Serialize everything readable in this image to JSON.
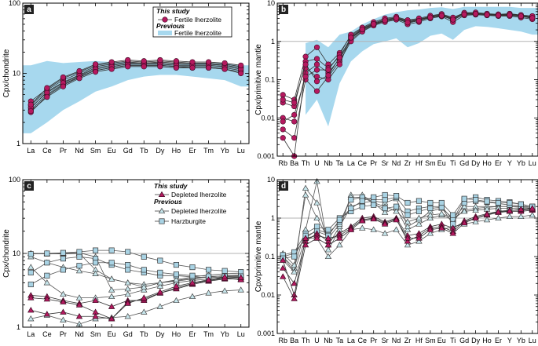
{
  "colors": {
    "this_study": "#b5195f",
    "previous_fill": "#a7d8ee",
    "previous_stroke": "#555555",
    "depleted_prev_fill": "#c7e6ec",
    "harzburgite_fill": "#a9d3e4",
    "ref_line": "#b3b3b3"
  },
  "chart_data": [
    {
      "id": "a",
      "type": "line",
      "panel_label": "a",
      "ylabel": "Cpx/chondrite",
      "yscale": "log",
      "ylim": [
        1,
        100
      ],
      "yticks": [
        1,
        10,
        100
      ],
      "ytick_labels": [
        "1",
        "10",
        "100"
      ],
      "categories": [
        "La",
        "Ce",
        "Pr",
        "Nd",
        "Sm",
        "Eu",
        "Gd",
        "Tb",
        "Dy",
        "Ho",
        "Er",
        "Tm",
        "Yb",
        "Lu"
      ],
      "legend": {
        "title1": "This study",
        "item1": "Fertile lherzolite",
        "title2": "Previous",
        "item2": "Fertile lherzolite"
      },
      "band_previous": {
        "upper": [
          13,
          15,
          14,
          14.5,
          15,
          14.5,
          14.5,
          14,
          14,
          14,
          14,
          14,
          14,
          13
        ],
        "lower": [
          1.4,
          2,
          3,
          4,
          5.5,
          6.5,
          8,
          9,
          9.5,
          9.5,
          9,
          8.5,
          8,
          6.5
        ]
      },
      "series_this_study": [
        [
          3.0,
          5.0,
          7.0,
          9.0,
          11.0,
          12.0,
          13.0,
          13.0,
          13.0,
          12.5,
          12.5,
          12.5,
          12.0,
          11.0
        ],
        [
          3.2,
          5.5,
          7.5,
          9.5,
          12.0,
          13.0,
          14.0,
          14.0,
          14.0,
          13.5,
          13.5,
          13.5,
          13.0,
          12.0
        ],
        [
          4.0,
          6.0,
          8.5,
          10.5,
          13.0,
          14.0,
          15.0,
          14.5,
          15.0,
          14.5,
          14.0,
          14.0,
          13.5,
          12.5
        ],
        [
          3.5,
          5.8,
          8.0,
          10.0,
          12.5,
          13.5,
          14.5,
          14.0,
          14.5,
          14.0,
          13.5,
          13.5,
          13.0,
          12.0
        ],
        [
          2.8,
          4.8,
          6.8,
          8.8,
          11.0,
          12.0,
          13.0,
          13.0,
          13.0,
          12.5,
          12.0,
          12.0,
          11.5,
          10.5
        ],
        [
          3.3,
          5.3,
          7.3,
          9.3,
          11.5,
          12.5,
          13.5,
          13.5,
          13.5,
          13.0,
          13.0,
          13.0,
          12.5,
          11.5
        ],
        [
          2.9,
          4.6,
          6.5,
          8.5,
          10.5,
          11.5,
          12.5,
          12.5,
          12.5,
          12.0,
          12.0,
          12.0,
          11.5,
          10.0
        ],
        [
          3.6,
          6.2,
          8.8,
          10.8,
          13.5,
          14.5,
          15.5,
          15.0,
          15.5,
          15.0,
          14.5,
          14.5,
          14.0,
          13.0
        ]
      ]
    },
    {
      "id": "b",
      "type": "line",
      "panel_label": "b",
      "ylabel": "Cpx/primitive mantle",
      "yscale": "log",
      "ylim": [
        0.001,
        10
      ],
      "yticks": [
        0.001,
        0.01,
        0.1,
        1,
        10
      ],
      "ytick_labels": [
        "0.001",
        "0.01",
        "0.1",
        "1",
        "10"
      ],
      "categories": [
        "Rb",
        "Ba",
        "Th",
        "U",
        "Nb",
        "Ta",
        "La",
        "Ce",
        "Pr",
        "Sr",
        "Nd",
        "Zr",
        "Hf",
        "Sm",
        "Eu",
        "Ti",
        "Gd",
        "Dy",
        "Ho",
        "Er",
        "Y",
        "Yb",
        "Lu"
      ],
      "reference_line": 1,
      "band_previous": {
        "upper": [
          null,
          null,
          0.9,
          1.1,
          0.7,
          1.5,
          1.8,
          2.8,
          3.8,
          5.0,
          5.8,
          6.5,
          6.8,
          7.5,
          7.8,
          7.0,
          8.0,
          8.0,
          8.0,
          8.0,
          8.0,
          7.5,
          7.5
        ],
        "lower": [
          null,
          null,
          0.012,
          0.03,
          0.006,
          0.08,
          0.3,
          0.55,
          0.85,
          1.0,
          1.2,
          0.7,
          0.9,
          1.4,
          1.6,
          1.1,
          2.0,
          2.5,
          2.4,
          2.2,
          2.0,
          1.8,
          1.5
        ]
      },
      "series_this_study": [
        [
          0.04,
          0.03,
          0.4,
          0.7,
          0.25,
          0.5,
          1.4,
          2.2,
          3.0,
          3.8,
          4.2,
          3.5,
          3.8,
          4.5,
          5.0,
          4.0,
          5.5,
          5.5,
          5.2,
          5.0,
          5.2,
          4.8,
          4.5
        ],
        [
          0.025,
          0.02,
          0.3,
          0.35,
          0.2,
          0.4,
          1.2,
          2.0,
          2.8,
          3.5,
          4.0,
          3.0,
          3.5,
          4.2,
          4.8,
          3.6,
          5.2,
          5.3,
          5.0,
          4.8,
          5.0,
          4.6,
          4.2
        ],
        [
          0.01,
          0.008,
          0.15,
          0.25,
          0.15,
          0.35,
          1.1,
          1.9,
          2.7,
          3.4,
          3.8,
          3.2,
          3.6,
          4.3,
          4.6,
          3.8,
          5.0,
          5.2,
          5.0,
          4.8,
          4.8,
          4.5,
          4.0
        ],
        [
          0.005,
          0.003,
          0.1,
          0.05,
          0.12,
          0.3,
          1.0,
          1.8,
          2.6,
          3.2,
          3.7,
          2.8,
          3.2,
          4.0,
          4.5,
          3.2,
          4.8,
          5.0,
          4.8,
          4.6,
          4.6,
          4.2,
          3.8
        ],
        [
          0.003,
          0.001,
          0.2,
          0.12,
          0.1,
          0.25,
          1.3,
          2.1,
          2.9,
          3.6,
          4.1,
          3.3,
          3.7,
          4.4,
          4.9,
          3.9,
          5.4,
          5.4,
          5.1,
          4.9,
          5.1,
          4.7,
          4.3
        ],
        [
          0.008,
          0.012,
          0.12,
          0.18,
          0.18,
          0.45,
          1.5,
          2.3,
          3.2,
          4.0,
          4.4,
          3.6,
          4.0,
          4.7,
          5.2,
          4.2,
          5.6,
          5.7,
          5.3,
          5.1,
          5.3,
          4.9,
          4.6
        ],
        [
          0.03,
          0.025,
          0.25,
          0.09,
          0.13,
          0.38,
          1.25,
          2.05,
          2.85,
          3.55,
          4.05,
          3.1,
          3.45,
          4.25,
          4.7,
          3.7,
          5.1,
          5.25,
          4.95,
          4.75,
          4.9,
          4.55,
          4.1
        ]
      ]
    },
    {
      "id": "c",
      "type": "line",
      "panel_label": "c",
      "ylabel": "Cpx/chondrite",
      "yscale": "log",
      "ylim": [
        1,
        100
      ],
      "yticks": [
        1,
        10,
        100
      ],
      "ytick_labels": [
        "1",
        "10",
        "100"
      ],
      "categories": [
        "La",
        "Ce",
        "Pr",
        "Nd",
        "Sm",
        "Eu",
        "Gd",
        "Tb",
        "Dy",
        "Ho",
        "Er",
        "Tm",
        "Yb",
        "Lu"
      ],
      "reference_line": 10,
      "legend": {
        "title1": "This study",
        "item1": "Depleted lherzolite",
        "title2": "Previous",
        "item2": "Depleted lherzolite",
        "item3": "Harzburgite"
      },
      "series_this_study": [
        [
          2.7,
          2.6,
          2.3,
          2.1,
          2.3,
          1.9,
          2.3,
          2.3,
          2.9,
          3.3,
          3.8,
          4.2,
          4.5,
          4.5
        ],
        [
          2.5,
          2.4,
          2.2,
          2.0,
          1.6,
          1.3,
          2.2,
          2.4,
          2.9,
          3.4,
          3.9,
          4.3,
          4.6,
          4.4
        ],
        [
          1.7,
          1.5,
          1.6,
          1.4,
          1.4,
          1.3,
          2.1,
          2.5,
          3.0,
          3.6,
          4.0,
          4.4,
          4.8,
          4.7
        ]
      ],
      "series_depleted_previous": [
        [
          10.0,
          10.0,
          9.8,
          10.0,
          6.0,
          4.5,
          4.0,
          3.5,
          4.0,
          4.3,
          4.6,
          4.8,
          5.0,
          5.0
        ],
        [
          9.0,
          7.5,
          6.5,
          5.8,
          5.3,
          4.5,
          4.0,
          3.8,
          4.0,
          4.2,
          4.5,
          4.8,
          5.0,
          5.1
        ],
        [
          6.5,
          4.0,
          2.8,
          2.5,
          2.5,
          2.6,
          2.8,
          3.2,
          3.6,
          4.0,
          4.3,
          4.5,
          4.6,
          4.7
        ],
        [
          1.3,
          1.45,
          1.25,
          1.1,
          1.3,
          1.35,
          1.4,
          1.6,
          1.9,
          2.3,
          2.6,
          2.9,
          3.1,
          3.2
        ],
        [
          10.0,
          9.8,
          10.0,
          10.2,
          9.0,
          3.2,
          3.3,
          3.5,
          4.0,
          4.4,
          4.8,
          5.1,
          5.3,
          5.4
        ]
      ],
      "series_harzburgite": [
        [
          9.8,
          10.0,
          10.2,
          10.5,
          11.0,
          11.0,
          10.5,
          9.0,
          8.0,
          7.0,
          6.5,
          6.0,
          5.8,
          5.6
        ],
        [
          5.5,
          7.5,
          8.5,
          9.0,
          8.5,
          7.0,
          6.0,
          5.5,
          5.0,
          5.0,
          4.8,
          4.7,
          4.8,
          4.8
        ],
        [
          3.8,
          5.0,
          6.0,
          6.8,
          7.5,
          7.5,
          7.0,
          6.0,
          5.5,
          5.2,
          5.0,
          4.9,
          4.9,
          4.9
        ]
      ]
    },
    {
      "id": "d",
      "type": "line",
      "panel_label": "d",
      "ylabel": "Cpx/primitive mantle",
      "yscale": "log",
      "ylim": [
        0.001,
        10
      ],
      "yticks": [
        0.001,
        0.01,
        0.1,
        1,
        10
      ],
      "ytick_labels": [
        "0.001",
        "0.01",
        "0.1",
        "1",
        "10"
      ],
      "categories": [
        "Rb",
        "Ba",
        "Th",
        "U",
        "Nb",
        "Ta",
        "La",
        "Ce",
        "Pr",
        "Sr",
        "Nd",
        "Zr",
        "Hf",
        "Sm",
        "Eu",
        "Ti",
        "Gd",
        "Dy",
        "Ho",
        "Er",
        "Y",
        "Yb",
        "Lu"
      ],
      "reference_line": 1,
      "series_this_study": [
        [
          0.05,
          0.02,
          0.25,
          0.4,
          0.25,
          0.4,
          0.6,
          1.0,
          1.1,
          0.8,
          1.0,
          0.35,
          0.4,
          0.6,
          0.7,
          0.55,
          0.8,
          1.0,
          1.2,
          1.4,
          1.5,
          1.5,
          1.6
        ],
        [
          0.08,
          0.01,
          0.3,
          0.35,
          0.3,
          0.35,
          0.55,
          0.9,
          1.0,
          0.75,
          0.95,
          0.25,
          0.35,
          0.55,
          0.6,
          0.45,
          0.85,
          1.1,
          1.3,
          1.5,
          1.6,
          1.6,
          1.7
        ],
        [
          0.03,
          0.008,
          0.2,
          0.3,
          0.2,
          0.3,
          0.5,
          0.85,
          0.95,
          0.7,
          0.9,
          0.3,
          0.3,
          0.5,
          0.55,
          0.4,
          0.75,
          1.0,
          1.25,
          1.45,
          1.55,
          1.7,
          1.8
        ]
      ],
      "series_depleted_previous": [
        [
          0.1,
          0.05,
          0.5,
          9.0,
          0.15,
          0.5,
          4.0,
          4.0,
          2.5,
          1.4,
          1.8,
          0.5,
          0.7,
          1.0,
          1.2,
          0.9,
          1.6,
          1.8,
          1.9,
          2.0,
          2.0,
          1.9,
          1.8
        ],
        [
          0.08,
          0.04,
          6.0,
          2.5,
          0.2,
          0.6,
          2.0,
          2.5,
          2.8,
          2.5,
          3.2,
          0.6,
          0.9,
          1.5,
          1.8,
          1.0,
          2.0,
          2.0,
          2.0,
          2.0,
          2.0,
          2.0,
          1.9
        ],
        [
          0.12,
          0.06,
          4.0,
          1.0,
          0.3,
          0.7,
          3.5,
          3.5,
          2.5,
          2.0,
          1.5,
          0.8,
          1.0,
          1.2,
          1.3,
          1.0,
          1.5,
          1.6,
          1.7,
          1.8,
          1.8,
          1.8,
          1.7
        ],
        [
          0.1,
          0.04,
          0.3,
          0.3,
          0.1,
          0.2,
          0.5,
          0.55,
          0.5,
          0.4,
          0.5,
          0.2,
          0.25,
          0.4,
          0.5,
          0.6,
          0.7,
          0.8,
          0.9,
          1.0,
          1.1,
          1.1,
          1.2
        ]
      ],
      "series_harzburgite": [
        [
          0.1,
          0.12,
          0.3,
          0.5,
          0.4,
          0.8,
          3.0,
          3.5,
          3.0,
          3.0,
          3.5,
          1.5,
          1.8,
          2.0,
          2.0,
          0.9,
          3.0,
          3.5,
          3.0,
          2.8,
          2.6,
          2.3,
          2.0
        ],
        [
          0.11,
          0.13,
          0.4,
          0.6,
          0.5,
          1.0,
          1.5,
          2.0,
          2.2,
          1.8,
          2.0,
          1.2,
          1.5,
          1.8,
          1.9,
          0.7,
          2.5,
          2.8,
          2.6,
          2.4,
          2.2,
          2.1,
          1.9
        ],
        [
          0.09,
          0.1,
          0.35,
          0.45,
          0.35,
          0.9,
          1.8,
          2.8,
          3.5,
          4.0,
          3.8,
          2.5,
          2.8,
          2.5,
          2.5,
          1.2,
          3.2,
          3.0,
          2.7,
          2.5,
          2.5,
          2.3,
          2.0
        ]
      ]
    }
  ]
}
